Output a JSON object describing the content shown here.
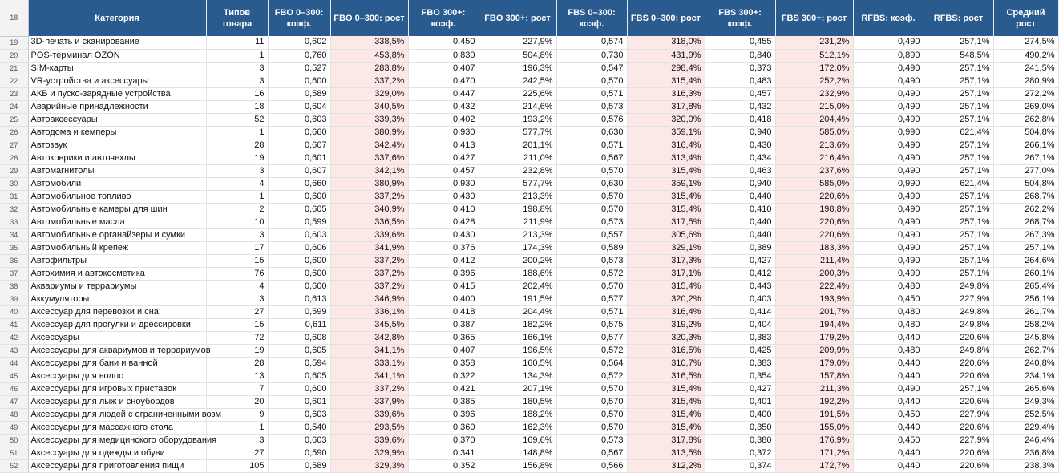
{
  "colors": {
    "header_bg": "#2a5b8e",
    "header_text": "#ffffff",
    "growth_bg": "#fde8e8",
    "row_header_bg": "#f3f3f3"
  },
  "header": {
    "row_number": "18",
    "columns": [
      "Категория",
      "Типов товара",
      "FBO 0–300: коэф.",
      "FBO 0–300: рост",
      "FBO 300+: коэф.",
      "FBO 300+: рост",
      "FBS 0–300: коэф.",
      "FBS 0–300: рост",
      "FBS 300+: коэф.",
      "FBS 300+: рост",
      "RFBS: коэф.",
      "RFBS: рост",
      "Средний рост"
    ]
  },
  "rows": [
    {
      "n": "19",
      "cells": [
        "3D-печать и сканирование",
        "11",
        "0,602",
        "338,5%",
        "0,450",
        "227,9%",
        "0,574",
        "318,0%",
        "0,455",
        "231,2%",
        "0,490",
        "257,1%",
        "274,5%"
      ]
    },
    {
      "n": "20",
      "cells": [
        "POS-терминал OZON",
        "1",
        "0,760",
        "453,8%",
        "0,830",
        "504,8%",
        "0,730",
        "431,9%",
        "0,840",
        "512,1%",
        "0,890",
        "548,5%",
        "490,2%"
      ]
    },
    {
      "n": "21",
      "cells": [
        "SIM-карты",
        "3",
        "0,527",
        "283,8%",
        "0,407",
        "196,3%",
        "0,547",
        "298,4%",
        "0,373",
        "172,0%",
        "0,490",
        "257,1%",
        "241,5%"
      ]
    },
    {
      "n": "22",
      "cells": [
        "VR-устройства и аксессуары",
        "3",
        "0,600",
        "337,2%",
        "0,470",
        "242,5%",
        "0,570",
        "315,4%",
        "0,483",
        "252,2%",
        "0,490",
        "257,1%",
        "280,9%"
      ]
    },
    {
      "n": "23",
      "cells": [
        "АКБ и пуско-зарядные устройства",
        "16",
        "0,589",
        "329,0%",
        "0,447",
        "225,6%",
        "0,571",
        "316,3%",
        "0,457",
        "232,9%",
        "0,490",
        "257,1%",
        "272,2%"
      ]
    },
    {
      "n": "24",
      "cells": [
        "Аварийные принадлежности",
        "18",
        "0,604",
        "340,5%",
        "0,432",
        "214,6%",
        "0,573",
        "317,8%",
        "0,432",
        "215,0%",
        "0,490",
        "257,1%",
        "269,0%"
      ]
    },
    {
      "n": "25",
      "cells": [
        "Автоаксессуары",
        "52",
        "0,603",
        "339,3%",
        "0,402",
        "193,2%",
        "0,576",
        "320,0%",
        "0,418",
        "204,4%",
        "0,490",
        "257,1%",
        "262,8%"
      ]
    },
    {
      "n": "26",
      "cells": [
        "Автодома и кемперы",
        "1",
        "0,660",
        "380,9%",
        "0,930",
        "577,7%",
        "0,630",
        "359,1%",
        "0,940",
        "585,0%",
        "0,990",
        "621,4%",
        "504,8%"
      ]
    },
    {
      "n": "27",
      "cells": [
        "Автозвук",
        "28",
        "0,607",
        "342,4%",
        "0,413",
        "201,1%",
        "0,571",
        "316,4%",
        "0,430",
        "213,6%",
        "0,490",
        "257,1%",
        "266,1%"
      ]
    },
    {
      "n": "28",
      "cells": [
        "Автоковрики и авточехлы",
        "19",
        "0,601",
        "337,6%",
        "0,427",
        "211,0%",
        "0,567",
        "313,4%",
        "0,434",
        "216,4%",
        "0,490",
        "257,1%",
        "267,1%"
      ]
    },
    {
      "n": "29",
      "cells": [
        "Автомагнитолы",
        "3",
        "0,607",
        "342,1%",
        "0,457",
        "232,8%",
        "0,570",
        "315,4%",
        "0,463",
        "237,6%",
        "0,490",
        "257,1%",
        "277,0%"
      ]
    },
    {
      "n": "30",
      "cells": [
        "Автомобили",
        "4",
        "0,660",
        "380,9%",
        "0,930",
        "577,7%",
        "0,630",
        "359,1%",
        "0,940",
        "585,0%",
        "0,990",
        "621,4%",
        "504,8%"
      ]
    },
    {
      "n": "31",
      "cells": [
        "Автомобильное топливо",
        "1",
        "0,600",
        "337,2%",
        "0,430",
        "213,3%",
        "0,570",
        "315,4%",
        "0,440",
        "220,6%",
        "0,490",
        "257,1%",
        "268,7%"
      ]
    },
    {
      "n": "32",
      "cells": [
        "Автомобильные камеры для шин",
        "2",
        "0,605",
        "340,9%",
        "0,410",
        "198,8%",
        "0,570",
        "315,4%",
        "0,410",
        "198,8%",
        "0,490",
        "257,1%",
        "262,2%"
      ]
    },
    {
      "n": "33",
      "cells": [
        "Автомобильные масла",
        "10",
        "0,599",
        "336,5%",
        "0,428",
        "211,9%",
        "0,573",
        "317,5%",
        "0,440",
        "220,6%",
        "0,490",
        "257,1%",
        "268,7%"
      ]
    },
    {
      "n": "34",
      "cells": [
        "Автомобильные органайзеры и сумки",
        "3",
        "0,603",
        "339,6%",
        "0,430",
        "213,3%",
        "0,557",
        "305,6%",
        "0,440",
        "220,6%",
        "0,490",
        "257,1%",
        "267,3%"
      ]
    },
    {
      "n": "35",
      "cells": [
        "Автомобильный крепеж",
        "17",
        "0,606",
        "341,9%",
        "0,376",
        "174,3%",
        "0,589",
        "329,1%",
        "0,389",
        "183,3%",
        "0,490",
        "257,1%",
        "257,1%"
      ]
    },
    {
      "n": "36",
      "cells": [
        "Автофильтры",
        "15",
        "0,600",
        "337,2%",
        "0,412",
        "200,2%",
        "0,573",
        "317,3%",
        "0,427",
        "211,4%",
        "0,490",
        "257,1%",
        "264,6%"
      ]
    },
    {
      "n": "37",
      "cells": [
        "Автохимия и автокосметика",
        "76",
        "0,600",
        "337,2%",
        "0,396",
        "188,6%",
        "0,572",
        "317,1%",
        "0,412",
        "200,3%",
        "0,490",
        "257,1%",
        "260,1%"
      ]
    },
    {
      "n": "38",
      "cells": [
        "Аквариумы и террариумы",
        "4",
        "0,600",
        "337,2%",
        "0,415",
        "202,4%",
        "0,570",
        "315,4%",
        "0,443",
        "222,4%",
        "0,480",
        "249,8%",
        "265,4%"
      ]
    },
    {
      "n": "39",
      "cells": [
        "Аккумуляторы",
        "3",
        "0,613",
        "346,9%",
        "0,400",
        "191,5%",
        "0,577",
        "320,2%",
        "0,403",
        "193,9%",
        "0,450",
        "227,9%",
        "256,1%"
      ]
    },
    {
      "n": "40",
      "cells": [
        "Аксессуар для перевозки и сна",
        "27",
        "0,599",
        "336,1%",
        "0,418",
        "204,4%",
        "0,571",
        "316,4%",
        "0,414",
        "201,7%",
        "0,480",
        "249,8%",
        "261,7%"
      ]
    },
    {
      "n": "41",
      "cells": [
        "Аксессуар для прогулки и дрессировки",
        "15",
        "0,611",
        "345,5%",
        "0,387",
        "182,2%",
        "0,575",
        "319,2%",
        "0,404",
        "194,4%",
        "0,480",
        "249,8%",
        "258,2%"
      ]
    },
    {
      "n": "42",
      "cells": [
        "Аксессуары",
        "72",
        "0,608",
        "342,8%",
        "0,365",
        "166,1%",
        "0,577",
        "320,3%",
        "0,383",
        "179,2%",
        "0,440",
        "220,6%",
        "245,8%"
      ]
    },
    {
      "n": "43",
      "cells": [
        "Аксессуары для аквариумов и террариумов",
        "19",
        "0,605",
        "341,1%",
        "0,407",
        "196,5%",
        "0,572",
        "316,5%",
        "0,425",
        "209,9%",
        "0,480",
        "249,8%",
        "262,7%"
      ]
    },
    {
      "n": "44",
      "cells": [
        "Аксессуары для бани и ванной",
        "28",
        "0,594",
        "333,1%",
        "0,358",
        "160,5%",
        "0,564",
        "310,7%",
        "0,383",
        "179,0%",
        "0,440",
        "220,6%",
        "240,8%"
      ]
    },
    {
      "n": "45",
      "cells": [
        "Аксессуары для волос",
        "13",
        "0,605",
        "341,1%",
        "0,322",
        "134,3%",
        "0,572",
        "316,5%",
        "0,354",
        "157,8%",
        "0,440",
        "220,6%",
        "234,1%"
      ]
    },
    {
      "n": "46",
      "cells": [
        "Аксессуары для игровых приставок",
        "7",
        "0,600",
        "337,2%",
        "0,421",
        "207,1%",
        "0,570",
        "315,4%",
        "0,427",
        "211,3%",
        "0,490",
        "257,1%",
        "265,6%"
      ]
    },
    {
      "n": "47",
      "cells": [
        "Аксессуары для лыж и сноубордов",
        "20",
        "0,601",
        "337,9%",
        "0,385",
        "180,5%",
        "0,570",
        "315,4%",
        "0,401",
        "192,2%",
        "0,440",
        "220,6%",
        "249,3%"
      ]
    },
    {
      "n": "48",
      "cells": [
        "Аксессуары для людей с ограниченными возм",
        "9",
        "0,603",
        "339,6%",
        "0,396",
        "188,2%",
        "0,570",
        "315,4%",
        "0,400",
        "191,5%",
        "0,450",
        "227,9%",
        "252,5%"
      ]
    },
    {
      "n": "49",
      "cells": [
        "Аксессуары для массажного стола",
        "1",
        "0,540",
        "293,5%",
        "0,360",
        "162,3%",
        "0,570",
        "315,4%",
        "0,350",
        "155,0%",
        "0,440",
        "220,6%",
        "229,4%"
      ]
    },
    {
      "n": "50",
      "cells": [
        "Аксессуары для медицинского оборудования",
        "3",
        "0,603",
        "339,6%",
        "0,370",
        "169,6%",
        "0,573",
        "317,8%",
        "0,380",
        "176,9%",
        "0,450",
        "227,9%",
        "246,4%"
      ]
    },
    {
      "n": "51",
      "cells": [
        "Аксессуары для одежды и обуви",
        "27",
        "0,590",
        "329,9%",
        "0,341",
        "148,8%",
        "0,567",
        "313,5%",
        "0,372",
        "171,2%",
        "0,440",
        "220,6%",
        "236,8%"
      ]
    },
    {
      "n": "52",
      "cells": [
        "Аксессуары для приготовления пищи",
        "105",
        "0,589",
        "329,3%",
        "0,352",
        "156,8%",
        "0,566",
        "312,2%",
        "0,374",
        "172,7%",
        "0,440",
        "220,6%",
        "238,3%"
      ]
    }
  ]
}
